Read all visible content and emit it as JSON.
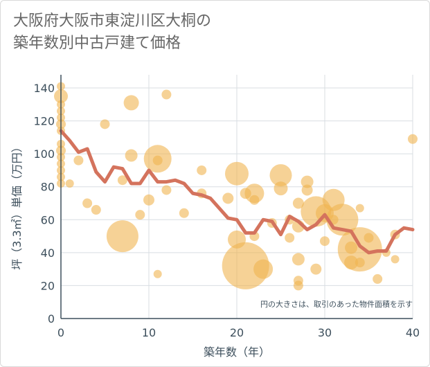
{
  "title_lines": [
    "大阪府大阪市東淀川区大桐の",
    "築年数別中古戸建て価格"
  ],
  "note": "円の大きさは、取引のあった物件面積を示す",
  "chart_data": {
    "type": "scatter",
    "xlabel": "築年数（年）",
    "ylabel": "坪（3.3㎡）単価（万円）",
    "xlim": [
      0,
      40
    ],
    "ylim": [
      0,
      148
    ],
    "xticks": [
      0,
      10,
      20,
      30,
      40
    ],
    "yticks": [
      0,
      20,
      40,
      60,
      80,
      100,
      120,
      140
    ],
    "grid": true,
    "colors": {
      "bubble": "#f0b450",
      "line": "#d4735d",
      "grid": "#d8dde2",
      "axis": "#3d4f5c"
    },
    "bubbles": [
      {
        "x": 0,
        "y": 141,
        "s": 6
      },
      {
        "x": 0,
        "y": 135,
        "s": 10
      },
      {
        "x": 0,
        "y": 130,
        "s": 6
      },
      {
        "x": 0,
        "y": 126,
        "s": 6
      },
      {
        "x": 0,
        "y": 122,
        "s": 6
      },
      {
        "x": 0,
        "y": 118,
        "s": 7
      },
      {
        "x": 0,
        "y": 114,
        "s": 6
      },
      {
        "x": 0,
        "y": 106,
        "s": 6
      },
      {
        "x": 0,
        "y": 102,
        "s": 7
      },
      {
        "x": 0,
        "y": 98,
        "s": 6
      },
      {
        "x": 0,
        "y": 94,
        "s": 6
      },
      {
        "x": 0,
        "y": 90,
        "s": 6
      },
      {
        "x": 0,
        "y": 86,
        "s": 6
      },
      {
        "x": 0,
        "y": 82,
        "s": 6
      },
      {
        "x": 1,
        "y": 82,
        "s": 6
      },
      {
        "x": 2,
        "y": 96,
        "s": 7
      },
      {
        "x": 3,
        "y": 70,
        "s": 7
      },
      {
        "x": 4,
        "y": 66,
        "s": 7
      },
      {
        "x": 5,
        "y": 118,
        "s": 7
      },
      {
        "x": 7,
        "y": 50,
        "s": 23
      },
      {
        "x": 7,
        "y": 84,
        "s": 7
      },
      {
        "x": 8,
        "y": 131,
        "s": 11
      },
      {
        "x": 8,
        "y": 99,
        "s": 9
      },
      {
        "x": 9,
        "y": 63,
        "s": 7
      },
      {
        "x": 10,
        "y": 72,
        "s": 8
      },
      {
        "x": 11,
        "y": 97,
        "s": 20
      },
      {
        "x": 11,
        "y": 96,
        "s": 7
      },
      {
        "x": 11,
        "y": 27,
        "s": 6
      },
      {
        "x": 12,
        "y": 136,
        "s": 7
      },
      {
        "x": 12,
        "y": 78,
        "s": 7
      },
      {
        "x": 14,
        "y": 64,
        "s": 7
      },
      {
        "x": 16,
        "y": 90,
        "s": 7
      },
      {
        "x": 16,
        "y": 76,
        "s": 7
      },
      {
        "x": 19,
        "y": 73,
        "s": 8
      },
      {
        "x": 20,
        "y": 88,
        "s": 17
      },
      {
        "x": 20,
        "y": 48,
        "s": 13
      },
      {
        "x": 21,
        "y": 76,
        "s": 8
      },
      {
        "x": 21,
        "y": 32,
        "s": 34
      },
      {
        "x": 22,
        "y": 76,
        "s": 14
      },
      {
        "x": 22,
        "y": 72,
        "s": 7
      },
      {
        "x": 22,
        "y": 50,
        "s": 7
      },
      {
        "x": 23,
        "y": 30,
        "s": 14
      },
      {
        "x": 24,
        "y": 58,
        "s": 7
      },
      {
        "x": 25,
        "y": 87,
        "s": 16
      },
      {
        "x": 25,
        "y": 79,
        "s": 10
      },
      {
        "x": 26,
        "y": 49,
        "s": 7
      },
      {
        "x": 26,
        "y": 60,
        "s": 7
      },
      {
        "x": 27,
        "y": 70,
        "s": 8
      },
      {
        "x": 27,
        "y": 56,
        "s": 9
      },
      {
        "x": 27,
        "y": 36,
        "s": 9
      },
      {
        "x": 27,
        "y": 23,
        "s": 7
      },
      {
        "x": 27,
        "y": 20,
        "s": 7
      },
      {
        "x": 28,
        "y": 83,
        "s": 9
      },
      {
        "x": 28,
        "y": 78,
        "s": 8
      },
      {
        "x": 29,
        "y": 65,
        "s": 22
      },
      {
        "x": 29,
        "y": 30,
        "s": 8
      },
      {
        "x": 30,
        "y": 64,
        "s": 13
      },
      {
        "x": 30,
        "y": 47,
        "s": 7
      },
      {
        "x": 31,
        "y": 72,
        "s": 16
      },
      {
        "x": 31,
        "y": 60,
        "s": 7
      },
      {
        "x": 32,
        "y": 60,
        "s": 23
      },
      {
        "x": 33,
        "y": 34,
        "s": 10
      },
      {
        "x": 33,
        "y": 43,
        "s": 9
      },
      {
        "x": 34,
        "y": 42,
        "s": 32
      },
      {
        "x": 34,
        "y": 67,
        "s": 6
      },
      {
        "x": 34,
        "y": 34,
        "s": 7
      },
      {
        "x": 35,
        "y": 49,
        "s": 7
      },
      {
        "x": 36,
        "y": 24,
        "s": 7
      },
      {
        "x": 37,
        "y": 40,
        "s": 6
      },
      {
        "x": 38,
        "y": 51,
        "s": 7
      },
      {
        "x": 38,
        "y": 36,
        "s": 6
      },
      {
        "x": 40,
        "y": 109,
        "s": 7
      }
    ],
    "average_line": {
      "x": [
        0,
        1,
        2,
        3,
        4,
        5,
        6,
        7,
        8,
        9,
        10,
        11,
        12,
        13,
        14,
        15,
        16,
        17,
        18,
        19,
        20,
        21,
        22,
        23,
        24,
        25,
        26,
        27,
        28,
        29,
        30,
        31,
        32,
        33,
        34,
        35,
        36,
        37,
        38,
        39,
        40
      ],
      "y": [
        114,
        108,
        101,
        103,
        89,
        83,
        92,
        91,
        82,
        82,
        90,
        83,
        83,
        84,
        82,
        76,
        75,
        73,
        67,
        61,
        60,
        52,
        52,
        60,
        59,
        51,
        62,
        59,
        54,
        57,
        63,
        55,
        54,
        53,
        44,
        40,
        41,
        41,
        51,
        55,
        54
      ]
    }
  }
}
